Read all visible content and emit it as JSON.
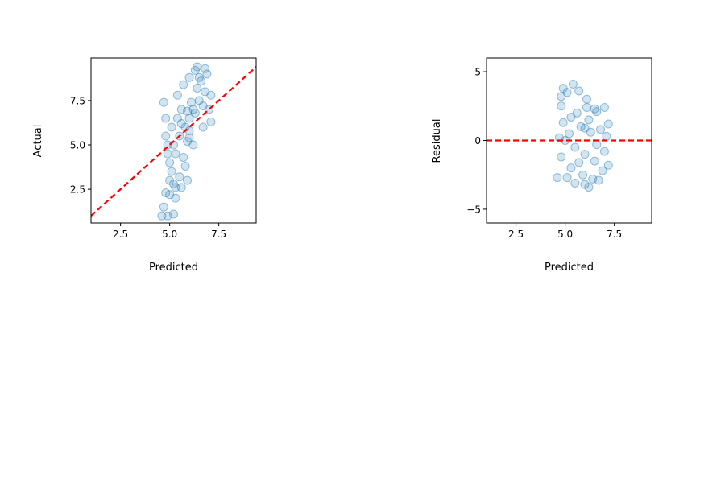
{
  "chart_data": [
    {
      "type": "scatter",
      "xlabel": "Predicted",
      "ylabel": "Actual",
      "xlim": [
        1.0,
        9.4
      ],
      "ylim": [
        0.6,
        9.9
      ],
      "xticks": [
        2.5,
        5.0,
        7.5
      ],
      "xtick_labels": [
        "2.5",
        "5.0",
        "7.5"
      ],
      "yticks": [
        2.5,
        5.0,
        7.5
      ],
      "ytick_labels": [
        "2.5",
        "5.0",
        "7.5"
      ],
      "grid": false,
      "point_color": "#1f77b4",
      "point_alpha": 0.2,
      "reference_line": {
        "style": "dashed",
        "color": "#ff0000",
        "points": [
          [
            1.0,
            1.0
          ],
          [
            9.4,
            9.4
          ]
        ]
      },
      "series": [
        {
          "points": [
            [
              5.0,
              4.0
            ],
            [
              5.2,
              5.0
            ],
            [
              5.5,
              5.5
            ],
            [
              5.8,
              6.0
            ],
            [
              6.0,
              6.5
            ],
            [
              6.2,
              7.0
            ],
            [
              6.5,
              7.5
            ],
            [
              6.8,
              8.0
            ],
            [
              5.3,
              4.5
            ],
            [
              5.6,
              6.2
            ],
            [
              5.9,
              5.2
            ],
            [
              6.1,
              7.4
            ],
            [
              6.4,
              8.2
            ],
            [
              6.6,
              8.6
            ],
            [
              6.9,
              9.0
            ],
            [
              5.1,
              3.5
            ],
            [
              5.0,
              3.0
            ],
            [
              5.2,
              2.8
            ],
            [
              4.9,
              5.0
            ],
            [
              4.8,
              6.5
            ],
            [
              4.7,
              7.4
            ],
            [
              5.4,
              7.8
            ],
            [
              5.7,
              8.4
            ],
            [
              6.0,
              8.8
            ],
            [
              6.3,
              9.2
            ],
            [
              6.7,
              6.0
            ],
            [
              7.0,
              7.0
            ],
            [
              7.1,
              7.8
            ],
            [
              6.2,
              5.0
            ],
            [
              5.8,
              3.8
            ],
            [
              5.5,
              3.2
            ],
            [
              5.3,
              2.6
            ],
            [
              5.7,
              4.3
            ],
            [
              6.3,
              6.8
            ],
            [
              6.7,
              7.2
            ],
            [
              5.9,
              6.9
            ],
            [
              5.6,
              7.0
            ],
            [
              5.4,
              6.5
            ],
            [
              5.1,
              6.0
            ],
            [
              4.9,
              4.5
            ],
            [
              4.8,
              5.5
            ],
            [
              6.0,
              5.8
            ],
            [
              6.5,
              8.8
            ],
            [
              6.8,
              9.3
            ],
            [
              6.4,
              9.4
            ],
            [
              4.6,
              1.0
            ],
            [
              4.9,
              1.0
            ],
            [
              4.7,
              1.5
            ],
            [
              5.2,
              1.1
            ],
            [
              4.8,
              2.3
            ],
            [
              5.0,
              2.2
            ],
            [
              5.3,
              2.0
            ],
            [
              5.6,
              2.6
            ],
            [
              5.9,
              3.0
            ],
            [
              7.1,
              6.3
            ],
            [
              6.0,
              5.4
            ]
          ]
        }
      ]
    },
    {
      "type": "scatter",
      "xlabel": "Predicted",
      "ylabel": "Residual",
      "xlim": [
        1.0,
        9.4
      ],
      "ylim": [
        -6.0,
        6.0
      ],
      "xticks": [
        2.5,
        5.0,
        7.5
      ],
      "xtick_labels": [
        "2.5",
        "5.0",
        "7.5"
      ],
      "yticks": [
        -5,
        0,
        5
      ],
      "ytick_labels": [
        "−5",
        "0",
        "5"
      ],
      "grid": false,
      "point_color": "#1f77b4",
      "point_alpha": 0.2,
      "reference_line": {
        "style": "dashed",
        "color": "#ff0000",
        "points": [
          [
            1.0,
            0.0
          ],
          [
            9.4,
            0.0
          ]
        ]
      },
      "series": [
        {
          "points": [
            [
              5.0,
              0.0
            ],
            [
              5.2,
              0.5
            ],
            [
              5.5,
              -0.5
            ],
            [
              5.8,
              1.0
            ],
            [
              6.0,
              -1.0
            ],
            [
              6.2,
              1.5
            ],
            [
              6.5,
              -1.5
            ],
            [
              6.8,
              0.8
            ],
            [
              5.3,
              -2.0
            ],
            [
              5.6,
              2.0
            ],
            [
              5.9,
              -2.5
            ],
            [
              6.1,
              2.4
            ],
            [
              6.4,
              -2.8
            ],
            [
              6.6,
              2.1
            ],
            [
              6.9,
              -2.2
            ],
            [
              7.1,
              0.3
            ],
            [
              7.0,
              -0.8
            ],
            [
              4.7,
              0.2
            ],
            [
              4.8,
              -1.2
            ],
            [
              4.9,
              1.3
            ],
            [
              5.1,
              -2.7
            ],
            [
              4.6,
              -2.7
            ],
            [
              4.8,
              2.5
            ],
            [
              4.8,
              3.2
            ],
            [
              4.9,
              3.8
            ],
            [
              5.1,
              3.5
            ],
            [
              5.4,
              4.1
            ],
            [
              5.7,
              3.6
            ],
            [
              6.1,
              3.0
            ],
            [
              6.5,
              2.3
            ],
            [
              7.0,
              2.4
            ],
            [
              6.0,
              -3.2
            ],
            [
              6.2,
              -3.4
            ],
            [
              5.5,
              -3.1
            ],
            [
              6.7,
              -2.9
            ],
            [
              7.2,
              -1.8
            ],
            [
              7.2,
              1.2
            ],
            [
              5.3,
              1.7
            ],
            [
              6.3,
              0.6
            ],
            [
              5.7,
              -1.6
            ],
            [
              6.6,
              -0.3
            ],
            [
              6.0,
              0.9
            ]
          ]
        }
      ]
    }
  ]
}
